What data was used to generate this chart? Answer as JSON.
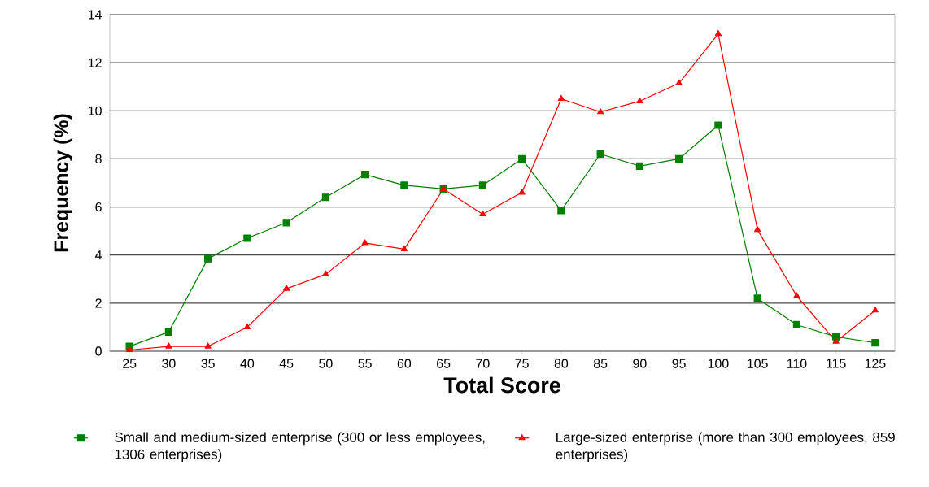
{
  "chart_data": {
    "type": "line",
    "xlabel": "Total Score",
    "ylabel": "Frequency (%)",
    "categories": [
      "25",
      "30",
      "35",
      "40",
      "45",
      "50",
      "55",
      "60",
      "65",
      "70",
      "75",
      "80",
      "85",
      "90",
      "95",
      "100",
      "105",
      "110",
      "115",
      "125"
    ],
    "series": [
      {
        "name": "Small and medium-sized enterprise (300 or less employees, 1306 enterprises)",
        "color": "#008000",
        "marker": "square",
        "values": [
          0.2,
          0.8,
          3.85,
          4.7,
          5.35,
          6.4,
          7.35,
          6.9,
          6.75,
          6.9,
          8.0,
          5.85,
          8.2,
          7.7,
          8.0,
          9.4,
          2.2,
          1.1,
          0.6,
          0.35
        ]
      },
      {
        "name": "Large-sized enterprise (more than 300 employees, 859 enterprises)",
        "color": "#ff0000",
        "marker": "triangle",
        "values": [
          0.05,
          0.2,
          0.2,
          1.0,
          2.6,
          3.2,
          4.5,
          4.25,
          6.75,
          5.7,
          6.6,
          10.5,
          9.95,
          10.4,
          11.15,
          13.2,
          5.05,
          2.3,
          0.4,
          1.7
        ]
      }
    ],
    "ylim": [
      0,
      14
    ],
    "yticks": [
      0,
      2,
      4,
      6,
      8,
      10,
      12,
      14
    ],
    "grid": "y",
    "legend": "bottom",
    "line_style": "solid"
  }
}
